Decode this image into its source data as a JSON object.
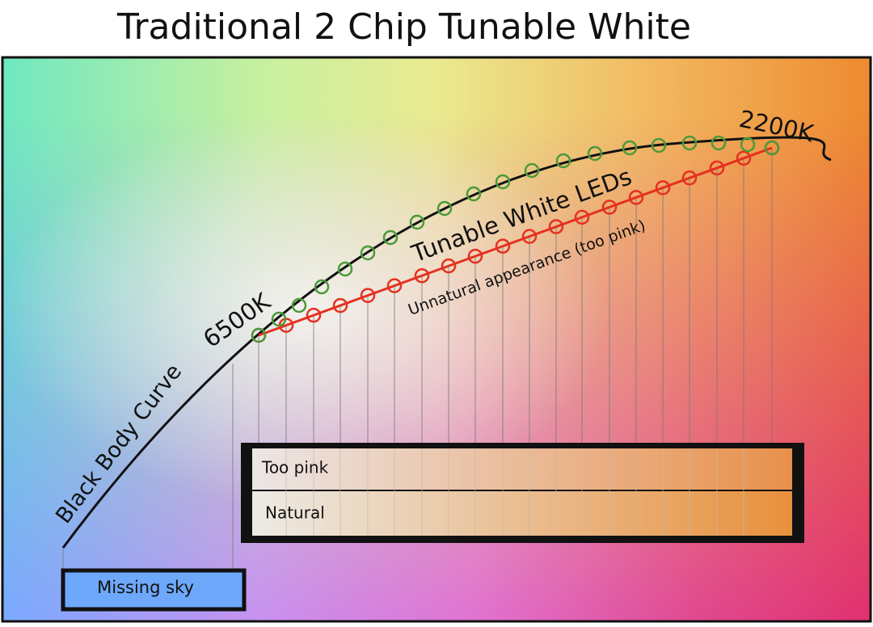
{
  "title": "Traditional 2 Chip Tunable White",
  "curve": {
    "label": "Black Body Curve",
    "cool_end": "6500K",
    "warm_end": "2200K"
  },
  "leds": {
    "label": "Tunable White LEDs",
    "note": "Unnatural appearance (too pink)"
  },
  "swatch": {
    "rows": [
      "Too pink",
      "Natural"
    ]
  },
  "missing": {
    "label": "Missing sky"
  }
}
